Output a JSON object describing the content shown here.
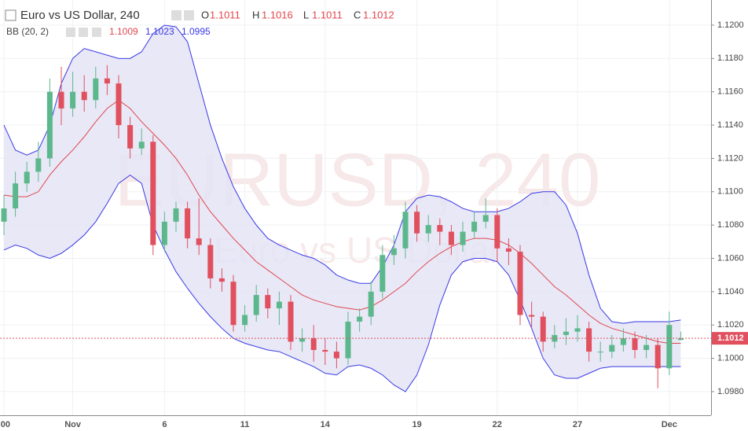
{
  "chart_data": {
    "type": "candlestick",
    "title": "Euro vs US Dollar, 240",
    "ohlc_labels": [
      "O",
      "H",
      "L",
      "C"
    ],
    "indicator": "BB (20, 2)",
    "watermark": "EURUSD, 240",
    "watermark_subtitle": "Euro vs US Dollar",
    "categories": [
      ":00",
      null,
      null,
      null,
      null,
      null,
      "Nov",
      null,
      null,
      null,
      null,
      null,
      null,
      null,
      "6",
      null,
      null,
      null,
      null,
      null,
      null,
      "11",
      null,
      null,
      null,
      null,
      null,
      null,
      "14",
      null,
      null,
      null,
      null,
      null,
      null,
      null,
      "19",
      null,
      null,
      null,
      null,
      null,
      null,
      "22",
      null,
      null,
      null,
      null,
      null,
      null,
      "27",
      null,
      null,
      null,
      null,
      null,
      null,
      null,
      "Dec",
      null
    ],
    "open": [
      1.1082,
      1.109,
      1.1105,
      1.1112,
      1.112,
      1.116,
      1.115,
      1.116,
      1.1155,
      1.1168,
      1.1165,
      1.114,
      1.1126,
      1.113,
      1.1068,
      1.1082,
      1.109,
      1.1072,
      1.1068,
      1.1048,
      1.1046,
      1.102,
      1.1026,
      1.1038,
      1.103,
      1.1034,
      1.101,
      1.1012,
      1.1005,
      1.1004,
      1.1,
      1.1022,
      1.1025,
      1.104,
      1.1062,
      1.1066,
      1.1088,
      1.1075,
      1.108,
      1.1076,
      1.1068,
      1.1076,
      1.1082,
      1.1086,
      1.1066,
      1.1064,
      1.1026,
      1.1025,
      1.101,
      1.1014,
      1.1016,
      1.1018,
      1.1004,
      1.1004,
      1.1008,
      1.1012,
      1.1005,
      1.1008,
      1.0994,
      1.1011
    ],
    "high": [
      1.1098,
      1.1112,
      1.1118,
      1.113,
      1.1168,
      1.1175,
      1.1172,
      1.117,
      1.1175,
      1.1176,
      1.117,
      1.1145,
      1.1138,
      1.1134,
      1.1088,
      1.1094,
      1.1094,
      1.1096,
      1.1072,
      1.1054,
      1.105,
      1.1032,
      1.1044,
      1.1042,
      1.104,
      1.1038,
      1.1018,
      1.102,
      1.1012,
      1.101,
      1.1028,
      1.103,
      1.1046,
      1.1068,
      1.1074,
      1.1094,
      1.1092,
      1.1086,
      1.1084,
      1.108,
      1.1082,
      1.1088,
      1.1096,
      1.109,
      1.1072,
      1.1068,
      1.1034,
      1.1028,
      1.102,
      1.1024,
      1.1026,
      1.1022,
      1.101,
      1.1014,
      1.1018,
      1.1016,
      1.1014,
      1.1012,
      1.1028,
      1.1016
    ],
    "low": [
      1.1074,
      1.1085,
      1.11,
      1.1106,
      1.1115,
      1.114,
      1.1145,
      1.1148,
      1.115,
      1.1158,
      1.1132,
      1.112,
      1.1122,
      1.1062,
      1.1064,
      1.1076,
      1.1066,
      1.1062,
      1.1042,
      1.104,
      1.1016,
      1.1016,
      1.1022,
      1.1024,
      1.102,
      1.1005,
      1.1004,
      1.0998,
      1.0996,
      1.0994,
      1.0996,
      1.1016,
      1.102,
      1.1036,
      1.1056,
      1.106,
      1.107,
      1.107,
      1.1068,
      1.1062,
      1.1064,
      1.1072,
      1.1078,
      1.1058,
      1.1056,
      1.102,
      1.1018,
      1.1004,
      1.1006,
      1.1008,
      1.101,
      1.0998,
      1.0998,
      1.1,
      1.1004,
      1.1,
      1.1,
      1.0982,
      1.099,
      1.1011
    ],
    "close": [
      1.109,
      1.1105,
      1.1112,
      1.112,
      1.116,
      1.115,
      1.116,
      1.1155,
      1.1168,
      1.1165,
      1.114,
      1.1126,
      1.113,
      1.1068,
      1.1082,
      1.109,
      1.1072,
      1.1068,
      1.1048,
      1.1046,
      1.102,
      1.1026,
      1.1038,
      1.103,
      1.1034,
      1.101,
      1.1012,
      1.1005,
      1.1004,
      1.1,
      1.1022,
      1.1025,
      1.104,
      1.1062,
      1.1066,
      1.1088,
      1.1075,
      1.108,
      1.1076,
      1.1068,
      1.1076,
      1.1082,
      1.1086,
      1.1066,
      1.1064,
      1.1026,
      1.1025,
      1.101,
      1.1014,
      1.1016,
      1.1018,
      1.1004,
      1.1004,
      1.1008,
      1.1012,
      1.1005,
      1.1008,
      1.0994,
      1.102,
      1.1012
    ],
    "bb": {
      "upper": [
        1.114,
        1.1125,
        1.1122,
        1.1125,
        1.114,
        1.1165,
        1.118,
        1.1186,
        1.1184,
        1.1182,
        1.118,
        1.118,
        1.1184,
        1.1195,
        1.12,
        1.1199,
        1.119,
        1.1165,
        1.114,
        1.112,
        1.1103,
        1.109,
        1.108,
        1.1072,
        1.1068,
        1.1065,
        1.1062,
        1.106,
        1.1056,
        1.105,
        1.1047,
        1.1045,
        1.1045,
        1.1055,
        1.1068,
        1.1088,
        1.1096,
        1.1098,
        1.1097,
        1.1094,
        1.109,
        1.1088,
        1.1088,
        1.1088,
        1.109,
        1.1094,
        1.1099,
        1.11,
        1.11,
        1.1092,
        1.1075,
        1.105,
        1.103,
        1.1022,
        1.1021,
        1.1022,
        1.1022,
        1.1022,
        1.1022,
        1.1023
      ],
      "middle": [
        1.1098,
        1.1097,
        1.1097,
        1.11,
        1.111,
        1.1118,
        1.1125,
        1.1133,
        1.1142,
        1.115,
        1.1155,
        1.115,
        1.1142,
        1.1135,
        1.1128,
        1.112,
        1.111,
        1.1098,
        1.1088,
        1.108,
        1.1072,
        1.1065,
        1.1058,
        1.1053,
        1.1048,
        1.1043,
        1.1038,
        1.1035,
        1.1033,
        1.1031,
        1.103,
        1.1029,
        1.1031,
        1.1035,
        1.104,
        1.1045,
        1.1052,
        1.1058,
        1.1063,
        1.1067,
        1.107,
        1.1072,
        1.1072,
        1.1071,
        1.1068,
        1.1063,
        1.1057,
        1.105,
        1.1043,
        1.1038,
        1.1032,
        1.1026,
        1.1021,
        1.1018,
        1.1016,
        1.1014,
        1.1012,
        1.101,
        1.1009,
        1.1009
      ],
      "lower": [
        1.1065,
        1.1068,
        1.1066,
        1.1062,
        1.106,
        1.1063,
        1.1068,
        1.1074,
        1.1082,
        1.1093,
        1.1105,
        1.111,
        1.1105,
        1.108,
        1.1065,
        1.1052,
        1.1042,
        1.1033,
        1.1025,
        1.1018,
        1.1012,
        1.1009,
        1.1007,
        1.1005,
        1.1004,
        1.1001,
        1.0998,
        1.0995,
        1.0991,
        1.099,
        1.0995,
        1.0996,
        1.0994,
        1.099,
        1.0984,
        1.098,
        1.099,
        1.1008,
        1.1032,
        1.105,
        1.1058,
        1.106,
        1.106,
        1.1058,
        1.105,
        1.1035,
        1.1018,
        1.1,
        1.099,
        1.0988,
        1.0988,
        1.0991,
        1.0994,
        1.0995,
        1.0995,
        1.0995,
        1.0995,
        1.0995,
        1.0995,
        1.0995
      ],
      "band_color": "#e4e4f6",
      "line_color": "#3a3ae6",
      "middle_color": "#e0474c"
    },
    "up_color": "#5cb88c",
    "down_color": "#e0505e",
    "ylim": [
      1.09658,
      1.12151
    ],
    "yticks": [
      {
        "value": 1.098,
        "label": "1.0980"
      },
      {
        "value": 1.1,
        "label": "1.1000"
      },
      {
        "value": 1.102,
        "label": "1.1020"
      },
      {
        "value": 1.104,
        "label": "1.1040"
      },
      {
        "value": 1.106,
        "label": "1.1060"
      },
      {
        "value": 1.108,
        "label": "1.1080"
      },
      {
        "value": 1.11,
        "label": "1.1100"
      },
      {
        "value": 1.112,
        "label": "1.1120"
      },
      {
        "value": 1.114,
        "label": "1.1140"
      },
      {
        "value": 1.116,
        "label": "1.1160"
      },
      {
        "value": 1.118,
        "label": "1.1180"
      },
      {
        "value": 1.12,
        "label": "1.1200"
      }
    ],
    "grid": true
  }
}
